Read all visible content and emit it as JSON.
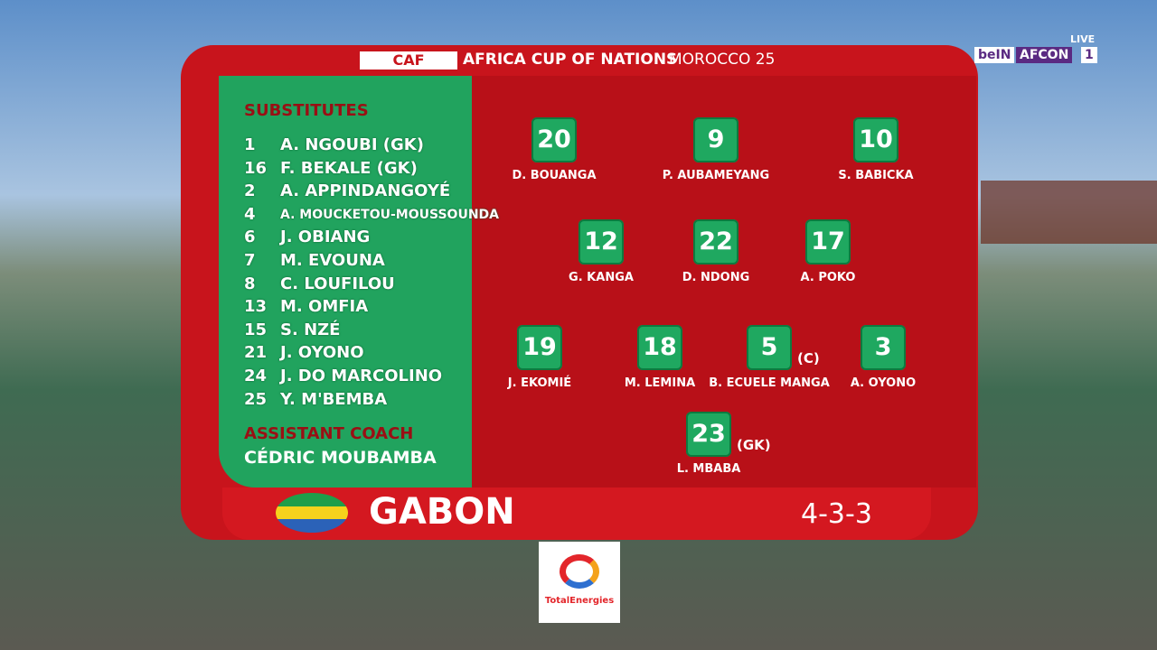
{
  "broadcaster": {
    "channel": "beIN",
    "feed": "AFCON",
    "number": 1,
    "status": "LIVE"
  },
  "header": {
    "org": "CAF",
    "title": "AFRICA CUP OF NATIONS",
    "host": "MOROCCO 25"
  },
  "substitutes": {
    "title": "SUBSTITUTES",
    "players": [
      {
        "number": 1,
        "name": "A. NGOUBI (GK)"
      },
      {
        "number": 16,
        "name": "F. BEKALE (GK)"
      },
      {
        "number": 2,
        "name": "A. APPINDANGOYÉ"
      },
      {
        "number": 4,
        "name": "A. MOUCKETOU-MOUSSOUNDA"
      },
      {
        "number": 6,
        "name": "J. OBIANG"
      },
      {
        "number": 7,
        "name": "M. EVOUNA"
      },
      {
        "number": 8,
        "name": "C. LOUFILOU"
      },
      {
        "number": 13,
        "name": "M. OMFIA"
      },
      {
        "number": 15,
        "name": "S. NZÉ"
      },
      {
        "number": 21,
        "name": "J. OYONO"
      },
      {
        "number": 24,
        "name": "J. DO MARCOLINO"
      },
      {
        "number": 25,
        "name": "Y. M'BEMBA"
      }
    ]
  },
  "assistant_coach": {
    "title": "ASSISTANT COACH",
    "name": "CÉDRIC MOUBAMBA"
  },
  "lineup": {
    "rows": [
      [
        {
          "number": 20,
          "name": "D. BOUANGA"
        },
        {
          "number": 9,
          "name": "P. AUBAMEYANG"
        },
        {
          "number": 10,
          "name": "S. BABICKA"
        }
      ],
      [
        {
          "number": 12,
          "name": "G. KANGA"
        },
        {
          "number": 22,
          "name": "D. NDONG"
        },
        {
          "number": 17,
          "name": "A. POKO"
        }
      ],
      [
        {
          "number": 19,
          "name": "J. EKOMIÉ"
        },
        {
          "number": 18,
          "name": "M. LEMINA"
        },
        {
          "number": 5,
          "name": "B. ECUELE MANGA",
          "tag": "(C)"
        },
        {
          "number": 3,
          "name": "A. OYONO"
        }
      ],
      [
        {
          "number": 23,
          "name": "L. MBABA",
          "tag": "(GK)"
        }
      ]
    ]
  },
  "team": {
    "name": "GABON",
    "formation": "4-3-3"
  },
  "sponsor": {
    "name": "TotalEnergies"
  }
}
